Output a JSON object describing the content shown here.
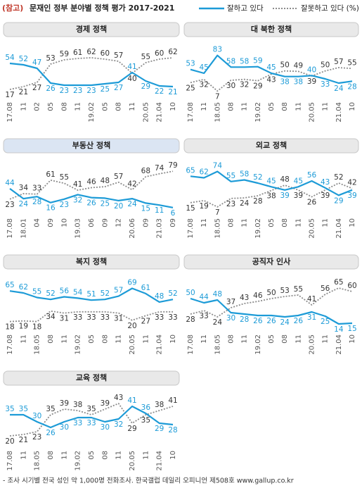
{
  "header": {
    "tag": "(참고)",
    "title": "문재인 정부 분야별 정책 평가 2017-2021"
  },
  "legend": [
    {
      "name": "잘하고 있다",
      "color": "#1d9bd7",
      "dashed": false
    },
    {
      "name": "잘못하고 있다 (%)",
      "color": "#8c8c8c",
      "dashed": true
    }
  ],
  "footer": "- 조사 시기별 전국 성인 약 1,000명 전화조사. 한국갤럽 데일리 오피니언 제508호 www.gallup.co.kr",
  "chart_data": [
    {
      "type": "line",
      "title": "경제 정책",
      "highlight": false,
      "ylim": [
        10,
        70
      ],
      "categories": [
        "17.08",
        "11",
        "02",
        "05",
        "08",
        "11",
        "19.02",
        "05",
        "08",
        "11",
        "20.05",
        "21.04",
        "10"
      ],
      "series": [
        {
          "values": [
            54,
            52,
            47,
            26,
            23,
            23,
            23,
            25,
            27,
            41,
            29,
            22,
            21
          ]
        },
        {
          "values": [
            17,
            21,
            27,
            53,
            59,
            61,
            62,
            60,
            57,
            40,
            55,
            60,
            62
          ]
        }
      ]
    },
    {
      "type": "line",
      "title": "대 북한 정책",
      "highlight": false,
      "ylim": [
        0,
        90
      ],
      "categories": [
        "17.08",
        "11",
        "18.05",
        "08",
        "11",
        "19.02",
        "05",
        "08",
        "11",
        "20.05",
        "11",
        "21.04",
        "10"
      ],
      "series": [
        {
          "values": [
            53,
            45,
            83,
            58,
            58,
            59,
            45,
            38,
            38,
            40,
            33,
            24,
            28
          ]
        },
        {
          "values": [
            25,
            32,
            7,
            30,
            32,
            29,
            43,
            50,
            49,
            39,
            50,
            57,
            55
          ]
        }
      ]
    },
    {
      "type": "line",
      "title": "부동산 정책",
      "highlight": true,
      "ylim": [
        0,
        85
      ],
      "categories": [
        "17.08",
        "18.01",
        "04",
        "09",
        "10",
        "19.03",
        "06",
        "09",
        "12",
        "20.06",
        "09",
        "21.03",
        "09"
      ],
      "series": [
        {
          "values": [
            44,
            24,
            28,
            16,
            23,
            32,
            26,
            25,
            20,
            24,
            15,
            11,
            6
          ]
        },
        {
          "values": [
            23,
            34,
            33,
            61,
            55,
            41,
            46,
            48,
            57,
            42,
            68,
            74,
            79
          ]
        }
      ]
    },
    {
      "type": "line",
      "title": "외교 정책",
      "highlight": false,
      "ylim": [
        0,
        80
      ],
      "categories": [
        "17.08",
        "11",
        "18.05",
        "08",
        "11",
        "19.02",
        "05",
        "08",
        "11",
        "20.05",
        "11",
        "21.04",
        "10"
      ],
      "series": [
        {
          "values": [
            65,
            62,
            74,
            55,
            58,
            52,
            45,
            39,
            45,
            56,
            43,
            29,
            39
          ]
        },
        {
          "values": [
            15,
            19,
            7,
            23,
            24,
            28,
            38,
            48,
            39,
            26,
            39,
            52,
            42
          ]
        }
      ]
    },
    {
      "type": "line",
      "title": "복지 정책",
      "highlight": false,
      "ylim": [
        10,
        75
      ],
      "categories": [
        "17.08",
        "11",
        "18.05",
        "08",
        "11",
        "19.02",
        "05",
        "08",
        "11",
        "20.05",
        "11",
        "21.04",
        "10"
      ],
      "series": [
        {
          "values": [
            65,
            62,
            55,
            52,
            56,
            54,
            51,
            52,
            57,
            69,
            61,
            48,
            52
          ]
        },
        {
          "values": [
            18,
            19,
            18,
            34,
            31,
            33,
            33,
            33,
            31,
            20,
            27,
            33,
            33
          ]
        }
      ]
    },
    {
      "type": "line",
      "title": "공직자 인사",
      "highlight": false,
      "ylim": [
        10,
        70
      ],
      "categories": [
        "17.08",
        "11",
        "18.05",
        "08",
        "11",
        "19.02",
        "05",
        "08",
        "11",
        "20.05",
        "11",
        "21.04",
        "10"
      ],
      "series": [
        {
          "values": [
            50,
            44,
            48,
            30,
            28,
            26,
            26,
            24,
            26,
            31,
            25,
            14,
            15
          ]
        },
        {
          "values": [
            28,
            33,
            24,
            37,
            43,
            46,
            50,
            53,
            55,
            41,
            56,
            65,
            60
          ]
        }
      ]
    },
    {
      "type": "line",
      "title": "교육 정책",
      "highlight": false,
      "ylim": [
        15,
        45
      ],
      "categories": [
        "17.08",
        "11",
        "18.05",
        "08",
        "11",
        "19.02",
        "05",
        "08",
        "11",
        "20.05",
        "11",
        "21.04",
        "10"
      ],
      "series": [
        {
          "values": [
            35,
            35,
            30,
            26,
            30,
            33,
            33,
            30,
            32,
            41,
            36,
            29,
            28
          ]
        },
        {
          "values": [
            20,
            21,
            23,
            35,
            39,
            38,
            35,
            39,
            43,
            29,
            35,
            38,
            41
          ]
        }
      ]
    }
  ]
}
